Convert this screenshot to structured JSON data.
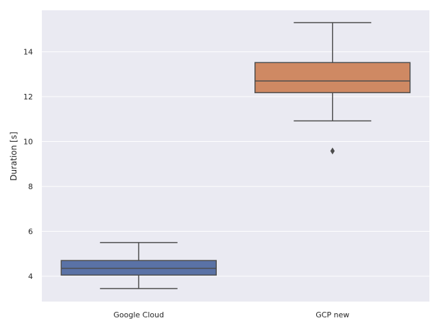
{
  "chart_data": {
    "type": "box",
    "title": "",
    "xlabel": "",
    "ylabel": "Duration [s]",
    "categories": [
      "Google Cloud",
      "GCP new"
    ],
    "boxes": [
      {
        "name": "Google Cloud",
        "whisker_low": 3.45,
        "q1": 4.05,
        "median": 4.35,
        "q3": 4.7,
        "whisker_high": 5.5,
        "outliers": [],
        "color": "#5a72a6"
      },
      {
        "name": "GCP new",
        "whisker_low": 10.92,
        "q1": 12.18,
        "median": 12.7,
        "q3": 13.52,
        "whisker_high": 15.3,
        "outliers": [
          9.58
        ],
        "color": "#cf8963"
      }
    ],
    "ylim": [
      2.87,
      15.85
    ],
    "yticks": [
      4,
      6,
      8,
      10,
      12,
      14
    ],
    "grid": true,
    "background_color": "#eaeaf2",
    "grid_color": "#ffffff",
    "line_color": "#4d4d4d"
  }
}
